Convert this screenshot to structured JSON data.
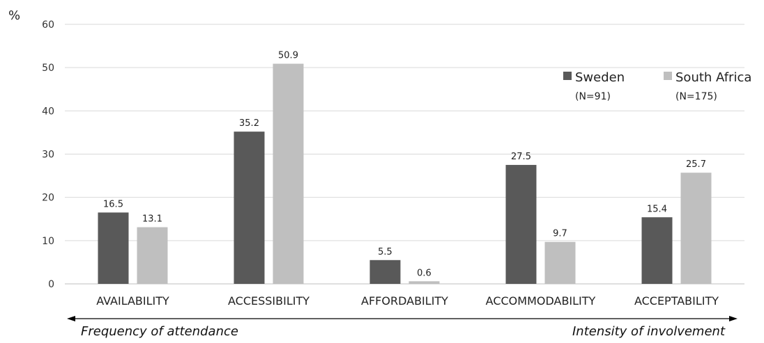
{
  "chart_data": {
    "type": "bar",
    "ylabel": "%",
    "ylim": [
      0,
      60
    ],
    "yticks": [
      0,
      10,
      20,
      30,
      40,
      50,
      60
    ],
    "grid": true,
    "legend_position": "top-right",
    "categories": [
      "AVAILABILITY",
      "ACCESSIBILITY",
      "AFFORDABILITY",
      "ACCOMMODABILITY",
      "ACCEPTABILITY"
    ],
    "series": [
      {
        "name": "Sweden",
        "n_label": "(N=91)",
        "color": "#595959",
        "values": [
          16.5,
          35.2,
          5.5,
          27.5,
          15.4
        ],
        "labels": [
          "16.5",
          "35.2",
          "5.5",
          "27.5",
          "15.4"
        ]
      },
      {
        "name": "South Africa",
        "n_label": "(N=175)",
        "color": "#bfbfbf",
        "values": [
          13.1,
          50.9,
          0.6,
          9.7,
          25.7
        ],
        "labels": [
          "13.1",
          "50.9",
          "0.6",
          "9.7",
          "25.7"
        ]
      }
    ],
    "annotations": {
      "left": "Frequency of attendance",
      "right": "Intensity of involvement"
    }
  }
}
